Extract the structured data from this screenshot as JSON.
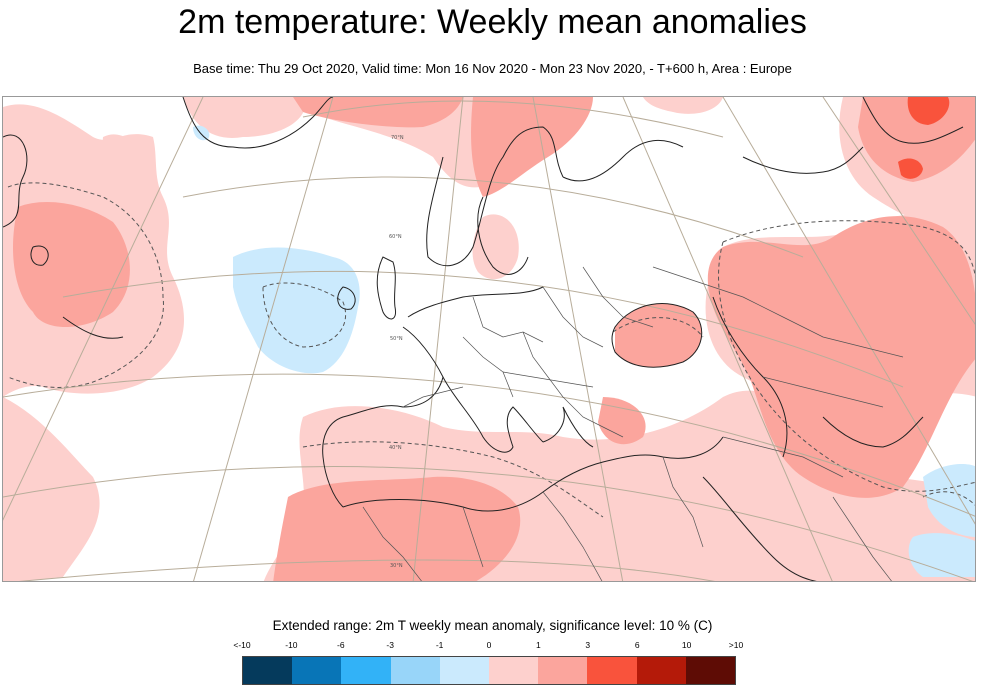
{
  "header": {
    "title": "2m temperature: Weekly mean anomalies",
    "subtitle": "Base time: Thu 29 Oct 2020, Valid time: Mon 16 Nov 2020 - Mon 23 Nov 2020, - T+600 h, Area : Europe"
  },
  "map": {
    "latitude_labels": [
      "70°N",
      "60°N",
      "50°N",
      "40°N",
      "30°N"
    ]
  },
  "legend": {
    "title": "Extended range: 2m T weekly mean anomaly, significance level: 10 % (C)",
    "ticks": [
      "<-10",
      "-10",
      "-6",
      "-3",
      "-1",
      "0",
      "1",
      "3",
      "6",
      "10",
      ">10"
    ],
    "colors": [
      "#053a5c",
      "#0875b7",
      "#32b2f7",
      "#98d5f9",
      "#cbeafd",
      "#fdd0cd",
      "#fba59d",
      "#f9533c",
      "#b41a09",
      "#5e0c05"
    ]
  },
  "colors": {
    "weak_warm": "#fdd0cd",
    "moderate_warm": "#fba59d",
    "strong_warm": "#f9533c",
    "weak_cold": "#cbeafd"
  }
}
